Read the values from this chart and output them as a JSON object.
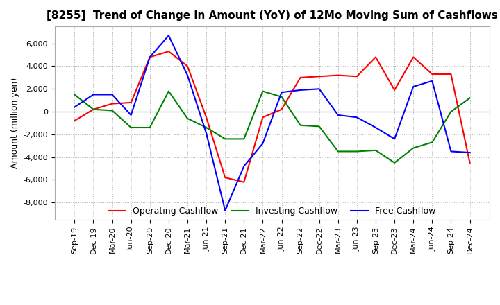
{
  "title": "[8255]  Trend of Change in Amount (YoY) of 12Mo Moving Sum of Cashflows",
  "ylabel": "Amount (million yen)",
  "xlabels": [
    "Sep-19",
    "Dec-19",
    "Mar-20",
    "Jun-20",
    "Sep-20",
    "Dec-20",
    "Mar-21",
    "Jun-21",
    "Sep-21",
    "Dec-21",
    "Mar-22",
    "Jun-22",
    "Sep-22",
    "Dec-22",
    "Mar-23",
    "Jun-23",
    "Sep-23",
    "Dec-23",
    "Mar-24",
    "Jun-24",
    "Sep-24",
    "Dec-24"
  ],
  "operating": [
    -800,
    200,
    700,
    800,
    4800,
    5300,
    4000,
    -500,
    -5800,
    -6200,
    -500,
    200,
    3000,
    3100,
    3200,
    3100,
    4800,
    1900,
    4800,
    3300,
    3300,
    -4500
  ],
  "investing": [
    1500,
    200,
    100,
    -1400,
    -1400,
    1800,
    -600,
    -1400,
    -2400,
    -2400,
    1800,
    1300,
    -1200,
    -1300,
    -3500,
    -3500,
    -3400,
    -4500,
    -3200,
    -2700,
    0,
    1200
  ],
  "free": [
    400,
    1500,
    1500,
    -300,
    4800,
    6700,
    3200,
    -1900,
    -8700,
    -4800,
    -2800,
    1700,
    1900,
    2000,
    -300,
    -500,
    -1400,
    -2400,
    2200,
    2700,
    -3500,
    -3600
  ],
  "operating_color": "#ff0000",
  "investing_color": "#008000",
  "free_color": "#0000ff",
  "ylim": [
    -9500,
    7500
  ],
  "yticks": [
    -8000,
    -6000,
    -4000,
    -2000,
    0,
    2000,
    4000,
    6000
  ],
  "title_fontsize": 11,
  "axis_label_fontsize": 9,
  "tick_fontsize": 8,
  "legend_fontsize": 9,
  "background_color": "#ffffff",
  "grid_color": "#b0b0b0"
}
